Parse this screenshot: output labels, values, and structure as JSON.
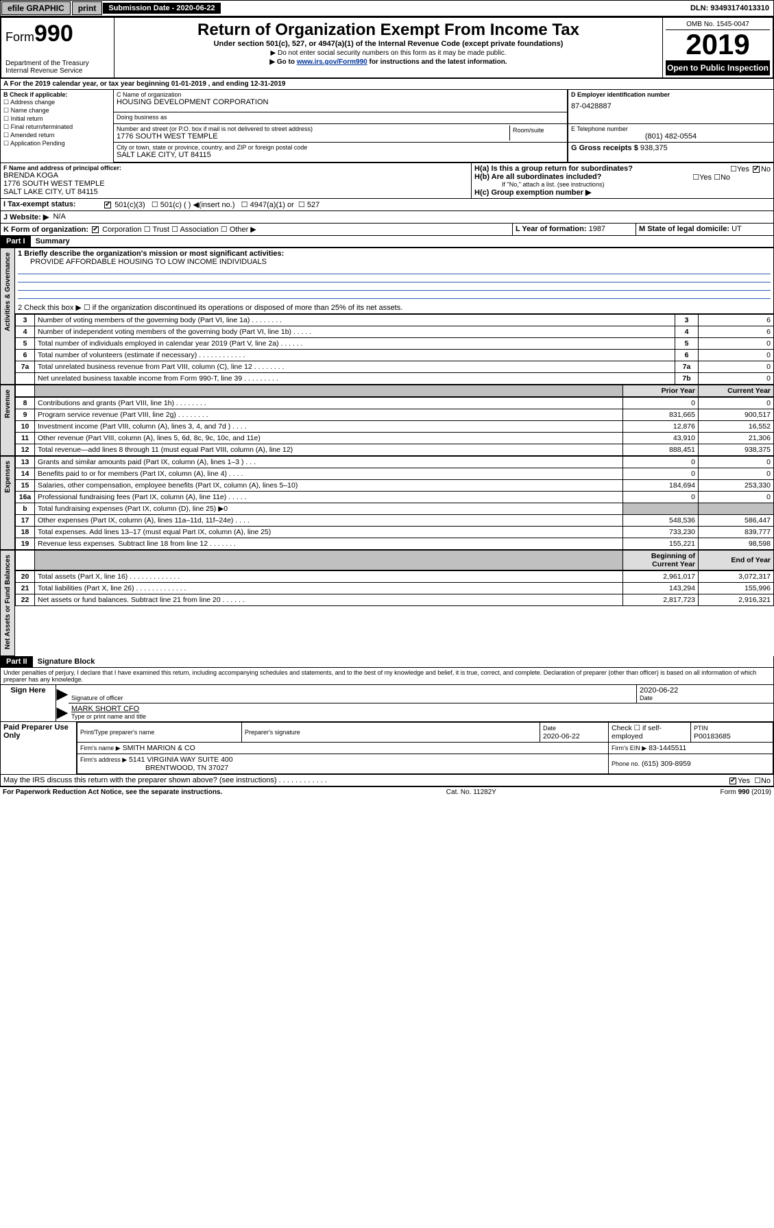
{
  "topbar": {
    "efile": "efile GRAPHIC",
    "print": "print",
    "submission_label": "Submission Date - 2020-06-22",
    "dln": "DLN: 93493174013310"
  },
  "header": {
    "form_prefix": "Form",
    "form_number": "990",
    "dept": "Department of the Treasury\nInternal Revenue Service",
    "title": "Return of Organization Exempt From Income Tax",
    "subtitle": "Under section 501(c), 527, or 4947(a)(1) of the Internal Revenue Code (except private foundations)",
    "note1": "▶ Do not enter social security numbers on this form as it may be made public.",
    "note2_pre": "▶ Go to ",
    "note2_link": "www.irs.gov/Form990",
    "note2_post": " for instructions and the latest information.",
    "omb": "OMB No. 1545-0047",
    "year": "2019",
    "open": "Open to Public Inspection"
  },
  "period": {
    "text": "For the 2019 calendar year, or tax year beginning 01-01-2019    , and ending 12-31-2019"
  },
  "boxB": {
    "label": "B Check if applicable:",
    "opts": [
      "Address change",
      "Name change",
      "Initial return",
      "Final return/terminated",
      "Amended return",
      "Application Pending"
    ]
  },
  "boxC": {
    "name_label": "C Name of organization",
    "name": "HOUSING DEVELOPMENT CORPORATION",
    "dba_label": "Doing business as",
    "dba": "",
    "addr_label": "Number and street (or P.O. box if mail is not delivered to street address)",
    "room_label": "Room/suite",
    "addr": "1776 SOUTH WEST TEMPLE",
    "city_label": "City or town, state or province, country, and ZIP or foreign postal code",
    "city": "SALT LAKE CITY, UT  84115"
  },
  "boxD": {
    "label": "D Employer identification number",
    "value": "87-0428887"
  },
  "boxE": {
    "label": "E Telephone number",
    "value": "(801) 482-0554"
  },
  "boxG": {
    "label": "G Gross receipts $",
    "value": "938,375"
  },
  "boxF": {
    "label": "F  Name and address of principal officer:",
    "name": "BRENDA KOGA",
    "addr1": "1776 SOUTH WEST TEMPLE",
    "addr2": "SALT LAKE CITY, UT  84115"
  },
  "boxH": {
    "a": "H(a)  Is this a group return for subordinates?",
    "a_yes": "Yes",
    "a_no": "No",
    "b": "H(b)  Are all subordinates included?",
    "b_yes": "Yes",
    "b_no": "No",
    "b_note": "If \"No,\" attach a list. (see instructions)",
    "c": "H(c)  Group exemption number ▶"
  },
  "taxexempt": {
    "label": "Tax-exempt status:",
    "c3": "501(c)(3)",
    "c": "501(c) (  ) ◀(insert no.)",
    "a1": "4947(a)(1) or",
    "s527": "527"
  },
  "boxJ": {
    "label": "J    Website: ▶",
    "value": "N/A"
  },
  "boxK": {
    "label": "K Form of organization:",
    "corp": "Corporation",
    "trust": "Trust",
    "assoc": "Association",
    "other": "Other ▶"
  },
  "boxL": {
    "label": "L Year of formation:",
    "value": "1987"
  },
  "boxM": {
    "label": "M State of legal domicile:",
    "value": "UT"
  },
  "part1": {
    "bar": "Part I",
    "title": "Summary",
    "l1": "1  Briefly describe the organization's mission or most significant activities:",
    "mission": "PROVIDE AFFORDABLE HOUSING TO LOW INCOME INDIVIDUALS",
    "l2": "2    Check this box ▶ ☐  if the organization discontinued its operations or disposed of more than 25% of its net assets.",
    "rows_gov": [
      {
        "n": "3",
        "d": "Number of voting members of the governing body (Part VI, line 1a)   .    .    .    .    .    .    .    .",
        "box": "3",
        "v": "6"
      },
      {
        "n": "4",
        "d": "Number of independent voting members of the governing body (Part VI, line 1b)   .    .    .    .    .",
        "box": "4",
        "v": "6"
      },
      {
        "n": "5",
        "d": "Total number of individuals employed in calendar year 2019 (Part V, line 2a)   .    .    .    .    .    .",
        "box": "5",
        "v": "0"
      },
      {
        "n": "6",
        "d": "Total number of volunteers (estimate if necessary)   .    .    .    .    .    .    .    .    .    .    .    .",
        "box": "6",
        "v": "0"
      },
      {
        "n": "7a",
        "d": "Total unrelated business revenue from Part VIII, column (C), line 12   .    .    .    .    .    .    .    .",
        "box": "7a",
        "v": "0"
      },
      {
        "n": "",
        "d": "Net unrelated business taxable income from Form 990-T, line 39   .    .    .    .    .    .    .    .    .",
        "box": "7b",
        "v": "0"
      }
    ],
    "col_prior": "Prior Year",
    "col_curr": "Current Year",
    "rows_rev": [
      {
        "n": "8",
        "d": "Contributions and grants (Part VIII, line 1h)   .    .    .    .    .    .    .    .",
        "p": "0",
        "c": "0"
      },
      {
        "n": "9",
        "d": "Program service revenue (Part VIII, line 2g)   .    .    .    .    .    .    .    .",
        "p": "831,665",
        "c": "900,517"
      },
      {
        "n": "10",
        "d": "Investment income (Part VIII, column (A), lines 3, 4, and 7d )   .    .    .    .",
        "p": "12,876",
        "c": "16,552"
      },
      {
        "n": "11",
        "d": "Other revenue (Part VIII, column (A), lines 5, 6d, 8c, 9c, 10c, and 11e)",
        "p": "43,910",
        "c": "21,306"
      },
      {
        "n": "12",
        "d": "Total revenue—add lines 8 through 11 (must equal Part VIII, column (A), line 12)",
        "p": "888,451",
        "c": "938,375"
      }
    ],
    "rows_exp": [
      {
        "n": "13",
        "d": "Grants and similar amounts paid (Part IX, column (A), lines 1–3 )   .    .    .",
        "p": "0",
        "c": "0"
      },
      {
        "n": "14",
        "d": "Benefits paid to or for members (Part IX, column (A), line 4)   .    .    .    .",
        "p": "0",
        "c": "0"
      },
      {
        "n": "15",
        "d": "Salaries, other compensation, employee benefits (Part IX, column (A), lines 5–10)",
        "p": "184,694",
        "c": "253,330"
      },
      {
        "n": "16a",
        "d": "Professional fundraising fees (Part IX, column (A), line 11e)   .    .    .    .    .",
        "p": "0",
        "c": "0"
      },
      {
        "n": "b",
        "d": "Total fundraising expenses (Part IX, column (D), line 25) ▶0",
        "p": "",
        "c": ""
      },
      {
        "n": "17",
        "d": "Other expenses (Part IX, column (A), lines 11a–11d, 11f–24e)   .    .    .    .",
        "p": "548,536",
        "c": "586,447"
      },
      {
        "n": "18",
        "d": "Total expenses. Add lines 13–17 (must equal Part IX, column (A), line 25)",
        "p": "733,230",
        "c": "839,777"
      },
      {
        "n": "19",
        "d": "Revenue less expenses. Subtract line 18 from line 12   .    .    .    .    .    .    .",
        "p": "155,221",
        "c": "98,598"
      }
    ],
    "col_beg": "Beginning of Current Year",
    "col_end": "End of Year",
    "rows_na": [
      {
        "n": "20",
        "d": "Total assets (Part X, line 16)   .    .    .    .    .    .    .    .    .    .    .    .    .",
        "p": "2,961,017",
        "c": "3,072,317"
      },
      {
        "n": "21",
        "d": "Total liabilities (Part X, line 26)   .    .    .    .    .    .    .    .    .    .    .    .    .",
        "p": "143,294",
        "c": "155,996"
      },
      {
        "n": "22",
        "d": "Net assets or fund balances. Subtract line 21 from line 20   .    .    .    .    .    .",
        "p": "2,817,723",
        "c": "2,916,321"
      }
    ],
    "tab_gov": "Activities & Governance",
    "tab_rev": "Revenue",
    "tab_exp": "Expenses",
    "tab_na": "Net Assets or Fund Balances"
  },
  "part2": {
    "bar": "Part II",
    "title": "Signature Block",
    "perjury": "Under penalties of perjury, I declare that I have examined this return, including accompanying schedules and statements, and to the best of my knowledge and belief, it is true, correct, and complete. Declaration of preparer (other than officer) is based on all information of which preparer has any knowledge.",
    "sign_here": "Sign Here",
    "sig_officer": "Signature of officer",
    "sig_date": "2020-06-22",
    "date_label": "Date",
    "officer_name": "MARK SHORT CFO",
    "type_name": "Type or print name and title",
    "paid": "Paid Preparer Use Only",
    "prep_name_label": "Print/Type preparer's name",
    "prep_sig_label": "Preparer's signature",
    "prep_date_label": "Date",
    "prep_date": "2020-06-22",
    "check_if": "Check ☐ if self-employed",
    "ptin_label": "PTIN",
    "ptin": "P00183685",
    "firm_name_label": "Firm's name    ▶",
    "firm_name": "SMITH MARION & CO",
    "firm_ein_label": "Firm's EIN ▶",
    "firm_ein": "83-1445511",
    "firm_addr_label": "Firm's address ▶",
    "firm_addr1": "5141 VIRGINIA WAY SUITE 400",
    "firm_addr2": "BRENTWOOD, TN  37027",
    "phone_label": "Phone no.",
    "phone": "(615) 309-8959",
    "discuss": "May the IRS discuss this return with the preparer shown above? (see instructions)   .    .    .    .    .    .    .    .    .    .    .    .",
    "yes": "Yes",
    "no": "No"
  },
  "footer": {
    "pra": "For Paperwork Reduction Act Notice, see the separate instructions.",
    "cat": "Cat. No. 11282Y",
    "form": "Form 990 (2019)"
  },
  "colors": {
    "link": "#003399",
    "rule": "#2e5db0"
  }
}
